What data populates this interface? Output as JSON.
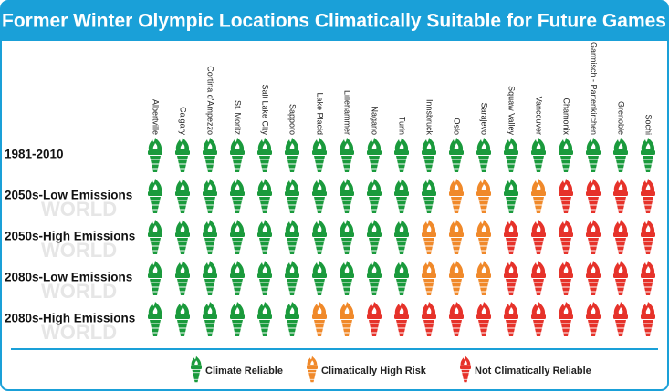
{
  "title": "Former Winter Olympic Locations Climatically Suitable for Future Games",
  "watermark": "WORLD",
  "columns": [
    "Albertville",
    "Calgary",
    "Cortina d'Ampezzo",
    "St. Moritz",
    "Salt Lake City",
    "Sapporo",
    "Lake Placid",
    "Lillehammer",
    "Nagano",
    "Turin",
    "Innsbruck",
    "Oslo",
    "Sarajevo",
    "Squaw Valley",
    "Vancouver",
    "Chamonix",
    "Garmisch - Partenkirchen",
    "Grenoble",
    "Sochi"
  ],
  "rows": [
    {
      "label": "1981-2010",
      "cells": [
        "R",
        "R",
        "R",
        "R",
        "R",
        "R",
        "R",
        "R",
        "R",
        "R",
        "R",
        "R",
        "R",
        "R",
        "R",
        "R",
        "R",
        "R",
        "R"
      ]
    },
    {
      "label": "2050s-Low Emissions",
      "cells": [
        "R",
        "R",
        "R",
        "R",
        "R",
        "R",
        "R",
        "R",
        "R",
        "R",
        "R",
        "H",
        "H",
        "R",
        "H",
        "N",
        "N",
        "N",
        "N"
      ]
    },
    {
      "label": "2050s-High Emissions",
      "cells": [
        "R",
        "R",
        "R",
        "R",
        "R",
        "R",
        "R",
        "R",
        "R",
        "R",
        "H",
        "H",
        "H",
        "N",
        "N",
        "N",
        "N",
        "N",
        "N"
      ]
    },
    {
      "label": "2080s-Low Emissions",
      "cells": [
        "R",
        "R",
        "R",
        "R",
        "R",
        "R",
        "R",
        "R",
        "R",
        "R",
        "H",
        "H",
        "H",
        "N",
        "N",
        "N",
        "N",
        "N",
        "N"
      ]
    },
    {
      "label": "2080s-High Emissions",
      "cells": [
        "R",
        "R",
        "R",
        "R",
        "R",
        "R",
        "H",
        "H",
        "N",
        "N",
        "N",
        "N",
        "N",
        "N",
        "N",
        "N",
        "N",
        "N",
        "N"
      ]
    }
  ],
  "legend": [
    {
      "key": "R",
      "label": "Climate Reliable",
      "color": "#1a9a3c"
    },
    {
      "key": "H",
      "label": "Climatically High Risk",
      "color": "#f0892a"
    },
    {
      "key": "N",
      "label": "Not Climatically Reliable",
      "color": "#e6322a"
    }
  ]
}
